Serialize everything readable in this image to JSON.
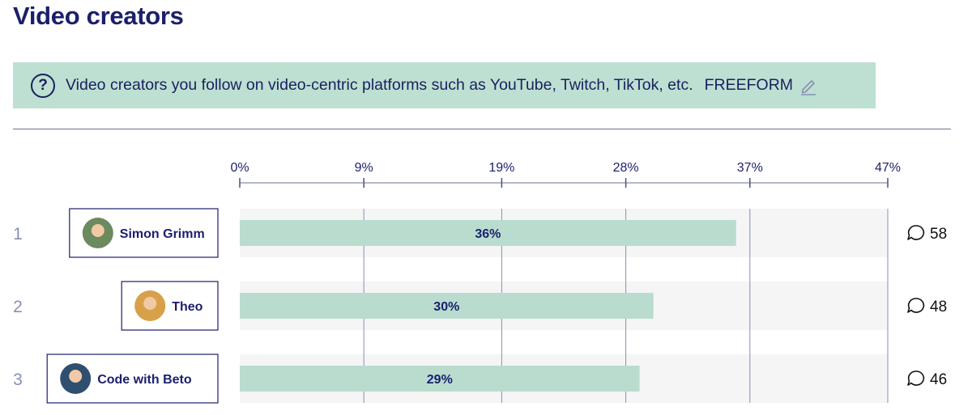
{
  "page": {
    "title": "Video creators"
  },
  "question": {
    "icon": "question-circle-icon",
    "text": "Video creators you follow on video-centric platforms such as YouTube, Twitch, TikTok, etc.",
    "tag": "FREEFORM",
    "edit_icon": "pencil-icon"
  },
  "colors": {
    "banner": "#bde0d2",
    "bar": "#b9dccf",
    "track": "#f5f5f5",
    "text": "#1b1f6b"
  },
  "chart_data": {
    "type": "bar",
    "orientation": "horizontal",
    "title": "Video creators",
    "xlim": [
      0,
      47
    ],
    "ticks": [
      0,
      9,
      19,
      28,
      37,
      47
    ],
    "tick_labels": [
      "0%",
      "9%",
      "19%",
      "28%",
      "37%",
      "47%"
    ],
    "categories": [
      "Simon Grimm",
      "Theo",
      "Code with Beto"
    ],
    "ranks": [
      "1",
      "2",
      "3"
    ],
    "values": [
      36,
      30,
      29
    ],
    "value_labels": [
      "36%",
      "30%",
      "29%"
    ],
    "comment_counts": [
      "58",
      "48",
      "46"
    ],
    "comment_icon": "speech-bubble-icon",
    "avatar_icon": "avatar"
  }
}
